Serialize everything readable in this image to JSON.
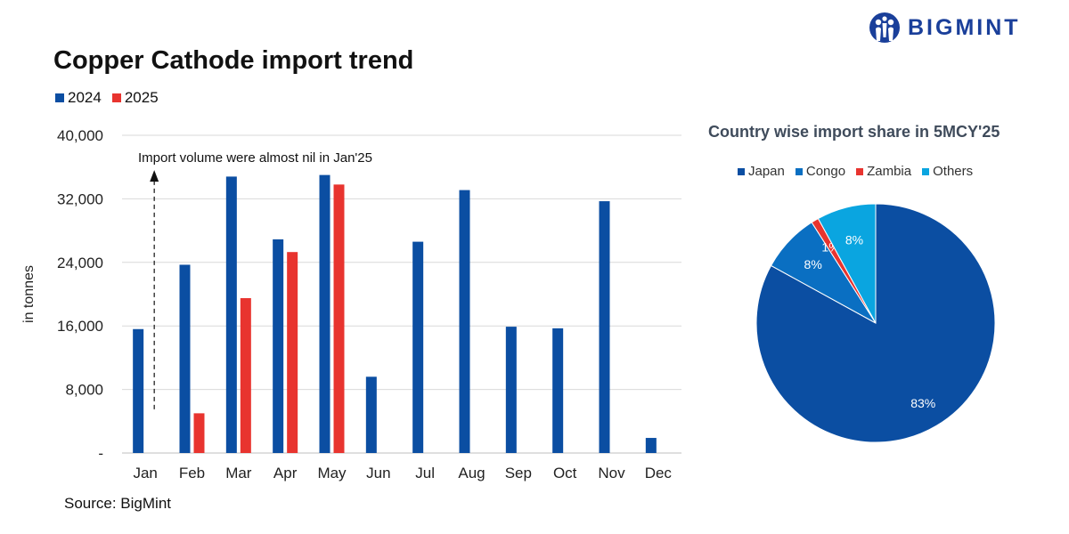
{
  "brand": {
    "name": "BIGMINT",
    "color": "#1a3f9a"
  },
  "source": "Source: BigMint",
  "chart_data": [
    {
      "type": "bar",
      "title": "Copper Cathode import trend",
      "ylabel": "in tonnes",
      "xlabel": "",
      "categories": [
        "Jan",
        "Feb",
        "Mar",
        "Apr",
        "May",
        "Jun",
        "Jul",
        "Aug",
        "Sep",
        "Oct",
        "Nov",
        "Dec"
      ],
      "series": [
        {
          "name": "2024",
          "color": "#0b4ea2",
          "values": [
            15600,
            23700,
            34800,
            26900,
            35000,
            9600,
            26600,
            33100,
            15900,
            15700,
            31700,
            1900
          ]
        },
        {
          "name": "2025",
          "color": "#e8342f",
          "values": [
            0,
            5000,
            19500,
            25300,
            33800,
            null,
            null,
            null,
            null,
            null,
            null,
            null
          ]
        }
      ],
      "ylim": [
        0,
        40000
      ],
      "yticks": [
        {
          "value": 0,
          "label": "-"
        },
        {
          "value": 8000,
          "label": "8,000"
        },
        {
          "value": 16000,
          "label": "16,000"
        },
        {
          "value": 24000,
          "label": "24,000"
        },
        {
          "value": 32000,
          "label": "32,000"
        },
        {
          "value": 40000,
          "label": "40,000"
        }
      ],
      "grid": true,
      "legend_position": "top-left",
      "annotation": {
        "text": "Import volume were almost nil in Jan'25",
        "category": "Jan",
        "from": 5500,
        "to": 35500
      }
    },
    {
      "type": "pie",
      "title": "Country wise import share in 5MCY'25",
      "legend_position": "top",
      "slices": [
        {
          "name": "Japan",
          "value": 83,
          "label": "83%",
          "color": "#0b4ea2"
        },
        {
          "name": "Congo",
          "value": 8,
          "label": "8%",
          "color": "#0a6fc2"
        },
        {
          "name": "Zambia",
          "value": 1,
          "label": "1%",
          "color": "#e8342f"
        },
        {
          "name": "Others",
          "value": 8,
          "label": "8%",
          "color": "#0aa5e0"
        }
      ]
    }
  ]
}
